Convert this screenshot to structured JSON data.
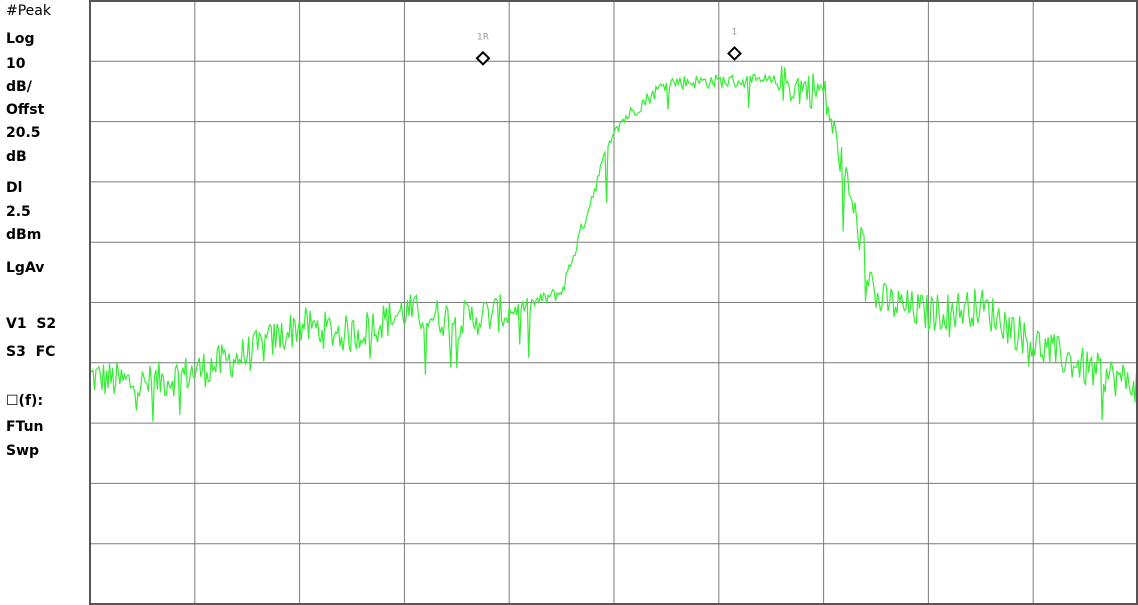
{
  "sidebar": {
    "detector": "#Peak",
    "scale_type": "Log",
    "scale_value": "10",
    "scale_unit": "dB/",
    "offset_label": "Offst",
    "offset_value": "20.5",
    "offset_unit": "dB",
    "display_line_label": "Dl",
    "display_line_value": "2.5",
    "display_line_unit": "dBm",
    "averaging": "LgAv",
    "trace_line_1": "V1  S2",
    "trace_line_2": "S3  FC",
    "marker_mode": "☐(f):",
    "marker_func": "FTun",
    "sweep": "Swp"
  },
  "markers": [
    {
      "label": "1R"
    },
    {
      "label": "1"
    }
  ],
  "colors": {
    "trace": "#33ee33",
    "display_line": "#33dd33",
    "grid": "#7a7a7a",
    "frame": "#555555",
    "marker_label": "#999999"
  },
  "chart_data": {
    "type": "line",
    "title": "",
    "xlabel": "",
    "ylabel": "",
    "grid": true,
    "x": [
      0,
      0.5,
      1,
      1.5,
      2,
      2.5,
      3,
      3.5,
      4,
      4.5,
      5,
      5.5,
      6,
      6.5,
      7,
      7.5,
      8,
      8.5,
      9,
      9.5,
      10
    ],
    "xlim": [
      0,
      10
    ],
    "ylim": [
      -97.5,
      2.5
    ],
    "display_line_dbm": 2.5,
    "series": [
      {
        "values": [
          -59.8,
          -61.2,
          -59.0,
          -56.1,
          -51.3,
          -52.9,
          -49.0,
          -50.4,
          -49.1,
          -45.8,
          -18.5,
          -11.0,
          -10.8,
          -10.9,
          -12.5,
          -47.0,
          -49.3,
          -48.1,
          -54.2,
          -58.4,
          -61.2
        ]
      }
    ],
    "markers": [
      {
        "label": "1R",
        "x": 3.75,
        "y": -7.0
      },
      {
        "label": "1",
        "x": 6.15,
        "y": -6.2
      }
    ]
  }
}
